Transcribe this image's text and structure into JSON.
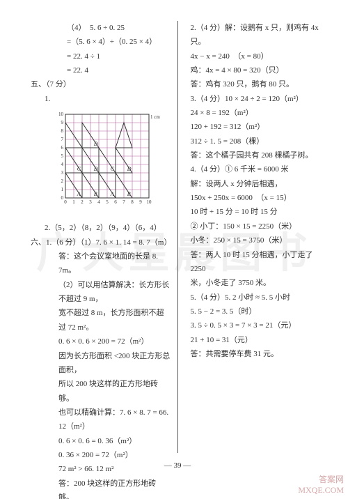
{
  "watermark": "广大星晨图书",
  "corner1": "答案网",
  "corner2": "MXQE.COM",
  "footer": "— 39 —",
  "grid": {
    "cell": 12,
    "rows": 10,
    "cols": 10,
    "tick_label_right": "1 cm",
    "x_ticks": [
      "0",
      "1",
      "2",
      "3",
      "4",
      "5",
      "6",
      "7",
      "8",
      "9",
      "10"
    ],
    "y_ticks": [
      "0",
      "1",
      "2",
      "3",
      "4",
      "5",
      "6",
      "7",
      "8",
      "9",
      "10"
    ],
    "grid_color": "#b060a0",
    "line_color": "#333333",
    "triangles": [
      {
        "pts": [
          [
            0,
            0
          ],
          [
            2,
            0
          ],
          [
            0,
            3
          ]
        ],
        "label": "A",
        "lp": [
          1.4,
          0.25
        ]
      },
      {
        "pts": [
          [
            2,
            0
          ],
          [
            4,
            0
          ],
          [
            2,
            3
          ]
        ],
        "label": "B",
        "lp": [
          3.4,
          0.25
        ]
      },
      {
        "pts": [
          [
            4,
            0
          ],
          [
            6,
            0
          ],
          [
            4,
            3
          ]
        ],
        "label": "A",
        "lp": [
          5.4,
          0.25
        ]
      },
      {
        "pts": [
          [
            6,
            0
          ],
          [
            8,
            0
          ],
          [
            6,
            3
          ]
        ],
        "label": "B",
        "lp": [
          7.4,
          0.25
        ]
      },
      {
        "pts": [
          [
            0,
            3
          ],
          [
            2,
            3
          ],
          [
            0,
            6
          ]
        ],
        "label": "C",
        "lp": [
          1.4,
          3.25
        ]
      },
      {
        "pts": [
          [
            2,
            3
          ],
          [
            4,
            3
          ],
          [
            2,
            6
          ]
        ],
        "label": "D",
        "lp": [
          3.4,
          3.25
        ]
      },
      {
        "pts": [
          [
            4,
            3
          ],
          [
            6,
            3
          ],
          [
            4,
            6
          ]
        ],
        "label": "C",
        "lp": [
          5.4,
          3.25
        ]
      },
      {
        "pts": [
          [
            6,
            3
          ],
          [
            8,
            3
          ],
          [
            6,
            6
          ]
        ],
        "label": "D",
        "lp": [
          7.4,
          3.25
        ]
      },
      {
        "pts": [
          [
            0,
            6
          ],
          [
            2,
            6
          ],
          [
            0,
            9
          ]
        ],
        "label": "",
        "lp": [
          0,
          0
        ]
      },
      {
        "pts": [
          [
            2,
            6
          ],
          [
            4,
            6
          ],
          [
            2,
            9
          ]
        ],
        "label": "D",
        "lp": [
          3.4,
          6.25
        ]
      },
      {
        "pts": [
          [
            6,
            6
          ],
          [
            8,
            6
          ],
          [
            7,
            9
          ]
        ],
        "label": "",
        "lp": [
          0,
          0
        ]
      }
    ]
  },
  "left": [
    {
      "cls": "s3",
      "t": "（4）　5. 6 ÷ 0. 25"
    },
    {
      "cls": "s3",
      "t": " =（5. 6 × 4）÷（0. 25 × 4）"
    },
    {
      "cls": "s3",
      "t": " = 22. 4 ÷ 1"
    },
    {
      "cls": "s3",
      "t": " = 22. 4"
    },
    {
      "cls": "",
      "t": "五、（7 分）"
    },
    {
      "cls": "s1",
      "t": "1."
    },
    {
      "grid": true
    },
    {
      "cls": "s1",
      "t": "2.（5，2）（8，2）（9，4）（6，4）"
    },
    {
      "cls": "",
      "t": "六、1.（6 分）（1）7. 6 × 1. 14 = 8. 7（m）"
    },
    {
      "cls": "s2",
      "t": "答：这个会议室地面的长是 8. 7m。"
    },
    {
      "cls": "s2",
      "t": "（2）可以用估算解决：长方形长不超过 9 m，"
    },
    {
      "cls": "s2",
      "t": "宽不超过 8 m，长方形面积不超过 72 m²。"
    },
    {
      "cls": "s2",
      "t": "0. 6 × 0. 6 × 200 = 72（m²）"
    },
    {
      "cls": "s2",
      "t": "因为长方形面积 <200 块正方形总面积，"
    },
    {
      "cls": "s2",
      "t": "所以 200 块这样的正方形地砖够。"
    },
    {
      "cls": "s2",
      "t": "也可以精确计算：7. 6 × 8. 7 = 66. 12（m²）"
    },
    {
      "cls": "s2",
      "t": "0. 6 × 0. 6 = 0. 36（m²）"
    },
    {
      "cls": "s2",
      "t": "0. 36 × 200 = 72（m²）"
    },
    {
      "cls": "s2",
      "t": "72 m² > 66. 12 m²"
    },
    {
      "cls": "s2",
      "t": "答：200 块这样的正方形地砖够。"
    }
  ],
  "right": [
    {
      "cls": "s5",
      "t": "2.（4 分）解：设鹅有 x 只，则鸡有 4x 只。"
    },
    {
      "cls": "s5",
      "t": "4x − x = 240　（x = 80）"
    },
    {
      "cls": "s5",
      "t": "鸡：4x = 4 × 80 = 320（只）"
    },
    {
      "cls": "s5",
      "t": "答：鸡有 320 只，鹅有 80 只。"
    },
    {
      "cls": "s5",
      "t": "3.（4 分）10 × 24 ÷ 2 = 120（m²）"
    },
    {
      "cls": "s5",
      "t": "24 × 8 = 192（m²）"
    },
    {
      "cls": "s5",
      "t": "120 + 192 = 312（m²）"
    },
    {
      "cls": "s5",
      "t": "312 ÷ 1. 5 = 208（棵）"
    },
    {
      "cls": "s5",
      "t": "答：这个橘子园共有 208 棵橘子树。"
    },
    {
      "cls": "s5",
      "t": "4.（4 分）① 6 千米 = 6000 米"
    },
    {
      "cls": "s5",
      "t": "解：设两人 x 分钟后相遇，"
    },
    {
      "cls": "s5",
      "t": "150x + 250x = 6000　（x = 15）"
    },
    {
      "cls": "s5",
      "t": "10 时 + 15 分 = 10 时 15 分"
    },
    {
      "cls": "s5",
      "t": "② 小丁：150 × 15 = 2250（米）"
    },
    {
      "cls": "s5",
      "t": "小冬：250 × 15 = 3750（米）"
    },
    {
      "cls": "s5",
      "t": "答：两人 10 时 15 分相遇，小丁走了 2250"
    },
    {
      "cls": "s5",
      "t": "米，小冬走了 3750 米。"
    },
    {
      "cls": "s5",
      "t": "5.（4 分）5. 2 小时 ≈ 5. 5 小时"
    },
    {
      "cls": "s5",
      "t": "5. 5 − 2 = 3. 5（时）"
    },
    {
      "cls": "s5",
      "t": "3. 5 ÷ 0. 5 × 3 = 7 × 3 = 21（元）"
    },
    {
      "cls": "s5",
      "t": "21 + 10 = 31（元）"
    },
    {
      "cls": "s5",
      "t": "答：共需要停车费 31 元。"
    }
  ]
}
